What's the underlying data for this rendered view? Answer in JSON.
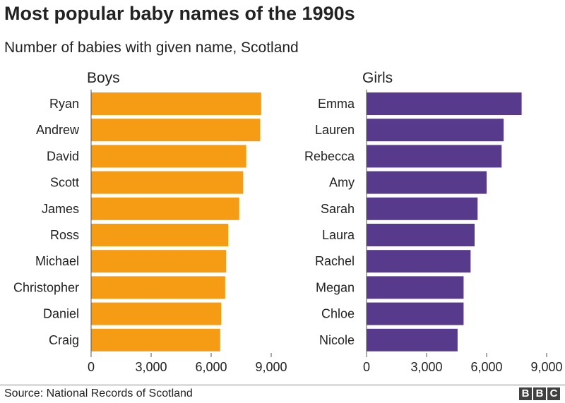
{
  "title": "Most popular baby names of the 1990s",
  "subtitle": "Number of babies with given name, Scotland",
  "source": "Source: National Records of Scotland",
  "logo": [
    "B",
    "B",
    "C"
  ],
  "chart_data": [
    {
      "type": "bar",
      "orientation": "horizontal",
      "title": "Boys",
      "color": "#f59b14",
      "categories": [
        "Ryan",
        "Andrew",
        "David",
        "Scott",
        "James",
        "Ross",
        "Michael",
        "Christopher",
        "Daniel",
        "Craig"
      ],
      "values": [
        8500,
        8450,
        7750,
        7600,
        7400,
        6850,
        6750,
        6700,
        6500,
        6450
      ],
      "xlim": [
        0,
        9000
      ],
      "xticks": [
        "0",
        "3,000",
        "6,000",
        "9,000"
      ],
      "xtick_values": [
        0,
        3000,
        6000,
        9000
      ],
      "grid": false
    },
    {
      "type": "bar",
      "orientation": "horizontal",
      "title": "Girls",
      "color": "#573a8b",
      "categories": [
        "Emma",
        "Lauren",
        "Rebecca",
        "Amy",
        "Sarah",
        "Laura",
        "Rachel",
        "Megan",
        "Chloe",
        "Nicole"
      ],
      "values": [
        7750,
        6850,
        6750,
        6000,
        5550,
        5400,
        5200,
        4850,
        4850,
        4550
      ],
      "xlim": [
        0,
        9000
      ],
      "xticks": [
        "0",
        "3,000",
        "6,000",
        "9,000"
      ],
      "xtick_values": [
        0,
        3000,
        6000,
        9000
      ],
      "grid": false
    }
  ]
}
